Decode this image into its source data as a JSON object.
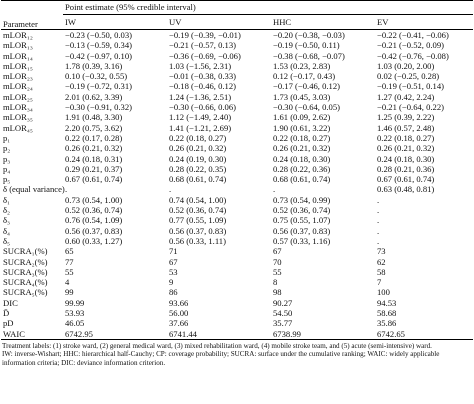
{
  "table": {
    "parameter_header": "Parameter",
    "group_header": "Point estimate (95% credible interval)",
    "columns": [
      "IW",
      "UV",
      "HHC",
      "EV"
    ],
    "rows": [
      [
        "mLOR₁₂",
        "−0.23 (−0.50, 0.03)",
        "−0.19 (−0.39, −0.01)",
        "−0.20 (−0.38, −0.03)",
        "−0.22 (−0.41, −0.06)"
      ],
      [
        "mLOR₁₃",
        "−0.13 (−0.59, 0.34)",
        "−0.21 (−0.57, 0.13)",
        "−0.19 (−0.50, 0.11)",
        "−0.21 (−0.52, 0.09)"
      ],
      [
        "mLOR₁₄",
        "−0.42 (−0.97, 0.10)",
        "−0.36 (−0.69, −0.06)",
        "−0.38 (−0.68, −0.07)",
        "−0.42 (−0.76, −0.08)"
      ],
      [
        "mLOR₁₅",
        "1.78 (0.39, 3.16)",
        "1.03 (−1.56, 2.31)",
        "1.53 (0.23, 2.83)",
        "1.03 (0.20, 2.00)"
      ],
      [
        "mLOR₂₃",
        "0.10 (−0.32, 0.55)",
        "−0.01 (−0.38, 0.33)",
        "0.12 (−0.17, 0.43)",
        "0.02 (−0.25, 0.28)"
      ],
      [
        "mLOR₂₄",
        "−0.19 (−0.72, 0.31)",
        "−0.18 (−0.46, 0.12)",
        "−0.17 (−0.46, 0.12)",
        "−0.19 (−0.51, 0.14)"
      ],
      [
        "mLOR₂₅",
        "2.01 (0.62, 3.39)",
        "1.24 (−1.36, 2.51)",
        "1.73 (0.45, 3.03)",
        "1.27 (0.42, 2.24)"
      ],
      [
        "mLOR₃₄",
        "−0.30 (−0.91, 0.32)",
        "−0.30 (−0.66, 0.06)",
        "−0.30 (−0.64, 0.05)",
        "−0.21 (−0.64, 0.22)"
      ],
      [
        "mLOR₃₅",
        "1.91 (0.48, 3.30)",
        "1.12 (−1.49, 2.40)",
        "1.61 (0.09, 2.62)",
        "1.25 (0.39, 2.22)"
      ],
      [
        "mLOR₄₅",
        "2.20 (0.75, 3.62)",
        "1.41 (−1.21, 2.69)",
        "1.90 (0.61, 3.22)",
        "1.46 (0.57, 2.48)"
      ],
      [
        "p₁",
        "0.22 (0.17, 0.28)",
        "0.22 (0.18, 0.27)",
        "0.22 (0.18, 0.27)",
        "0.22 (0.18, 0.27)"
      ],
      [
        "p₂",
        "0.26 (0.21, 0.32)",
        "0.26 (0.21, 0.32)",
        "0.26 (0.21, 0.32)",
        "0.26 (0.21, 0.32)"
      ],
      [
        "p₃",
        "0.24 (0.18, 0.31)",
        "0.24 (0.19, 0.30)",
        "0.24 (0.18, 0.30)",
        "0.24 (0.18, 0.30)"
      ],
      [
        "p₄",
        "0.29 (0.21, 0.37)",
        "0.28 (0.22, 0.35)",
        "0.28 (0.22, 0.36)",
        "0.28 (0.21, 0.36)"
      ],
      [
        "p₅",
        "0.67 (0.61, 0.74)",
        "0.68 (0.61, 0.74)",
        "0.68 (0.61, 0.74)",
        "0.67 (0.61, 0.74)"
      ],
      [
        "δ (equal variance)",
        ".",
        ".",
        ".",
        "0.63 (0.48, 0.81)"
      ],
      [
        "δ₁",
        "0.73 (0.54, 1.00)",
        "0.74 (0.54, 1.00)",
        "0.73 (0.54, 0.99)",
        "."
      ],
      [
        "δ₂",
        "0.52 (0.36, 0.74)",
        "0.52 (0.36, 0.74)",
        "0.52 (0.36, 0.74)",
        "."
      ],
      [
        "δ₃",
        "0.76 (0.54, 1.09)",
        "0.77 (0.55, 1.09)",
        "0.75 (0.55, 1.07)",
        "."
      ],
      [
        "δ₄",
        "0.56 (0.37, 0.83)",
        "0.56 (0.37, 0.83)",
        "0.56 (0.37, 0.83)",
        "."
      ],
      [
        "δ₅",
        "0.60 (0.33, 1.27)",
        "0.56 (0.33, 1.11)",
        "0.57 (0.33, 1.16)",
        "."
      ],
      [
        "SUCRA₁(%)",
        "65",
        "71",
        "67",
        "73"
      ],
      [
        "SUCRA₂(%)",
        "77",
        "67",
        "70",
        "62"
      ],
      [
        "SUCRA₃(%)",
        "55",
        "53",
        "55",
        "58"
      ],
      [
        "SUCRA₄(%)",
        "4",
        "9",
        "8",
        "7"
      ],
      [
        "SUCRA₅(%)",
        "99",
        "86",
        "98",
        "100"
      ],
      [
        "DIC",
        "99.99",
        "93.66",
        "90.27",
        "94.53"
      ],
      [
        "D̄",
        "53.93",
        "56.00",
        "54.50",
        "58.68"
      ],
      [
        "pD",
        "46.05",
        "37.66",
        "35.77",
        "35.86"
      ],
      [
        "WAIC",
        "6742.95",
        "6741.44",
        "6738.99",
        "6742.65"
      ]
    ]
  },
  "footnotes": [
    "Treatment labels: (1) stroke ward, (2) general medical ward, (3) mixed rehabilitation ward, (4) mobile stroke team, and (5) acute (semi-intensive) ward.",
    "IW: inverse-Wishart; HHC: hierarchical half-Cauchy; CP: coverage probability; SUCRA: surface under the cumulative ranking; WAIC: widely applicable information criteria; DIC: deviance information criterion."
  ]
}
